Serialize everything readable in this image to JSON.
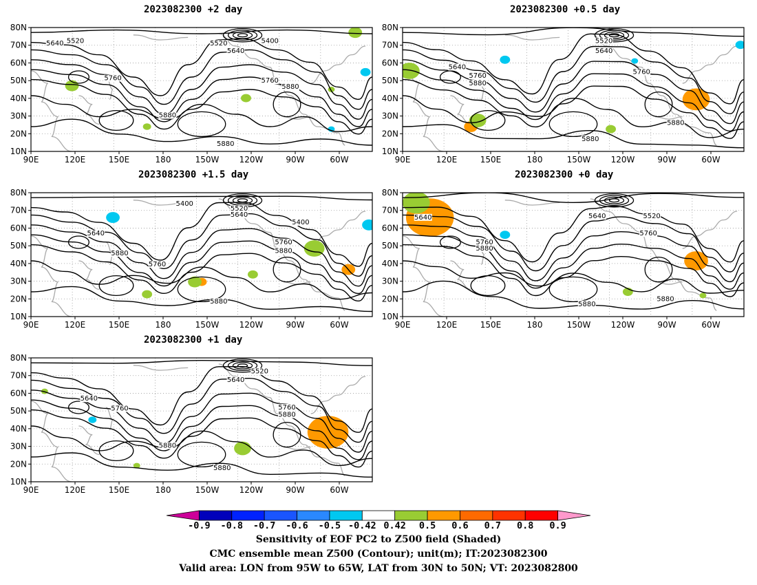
{
  "panels": [
    {
      "id": "p1",
      "title": "2023082300 +2 day",
      "contour_labels": [
        "5520",
        "5640",
        "5520",
        "5640",
        "5400",
        "5760",
        "5760",
        "5880",
        "5880",
        "5880"
      ]
    },
    {
      "id": "p2",
      "title": "2023082300 +0.5 day",
      "contour_labels": [
        "5520",
        "5640",
        "5640",
        "5760",
        "5880",
        "5760",
        "5880",
        "5880"
      ]
    },
    {
      "id": "p3",
      "title": "2023082300 +1.5 day",
      "contour_labels": [
        "5400",
        "5520",
        "5640",
        "5640",
        "5400",
        "5880",
        "5760",
        "5760",
        "5880",
        "5880"
      ]
    },
    {
      "id": "p4",
      "title": "2023082300 +0 day",
      "contour_labels": [
        "5640",
        "5640",
        "5520",
        "5760",
        "5760",
        "5880",
        "5880",
        "5880"
      ]
    },
    {
      "id": "p5",
      "title": "2023082300 +1 day",
      "contour_labels": [
        "5520",
        "5640",
        "5640",
        "5760",
        "5760",
        "5880",
        "5880",
        "5880"
      ]
    }
  ],
  "lat_labels": [
    "80N",
    "70N",
    "60N",
    "50N",
    "40N",
    "30N",
    "20N",
    "10N"
  ],
  "lon_labels": [
    "90E",
    "120E",
    "150E",
    "180",
    "150W",
    "120W",
    "90W",
    "60W"
  ],
  "colorbar": {
    "ticks": [
      "-0.9",
      "-0.8",
      "-0.7",
      "-0.6",
      "-0.5",
      "-0.42",
      "0.42",
      "0.5",
      "0.6",
      "0.7",
      "0.8",
      "0.9"
    ],
    "colors": [
      "#cc0099",
      "#0000bb",
      "#0022ff",
      "#1a55ff",
      "#2a88ff",
      "#00c8f0",
      "#ffffff",
      "#99cc33",
      "#ff9900",
      "#ff6a00",
      "#ff3300",
      "#ff0000",
      "#ff99cc"
    ]
  },
  "captions": [
    "Sensitivity of EOF PC2 to Z500 field (Shaded)",
    "CMC ensemble mean Z500 (Contour); unit(m); IT:2023082300",
    "Valid area: LON from 95W to 65W, LAT from 30N to 50N; VT: 2023082800"
  ]
}
